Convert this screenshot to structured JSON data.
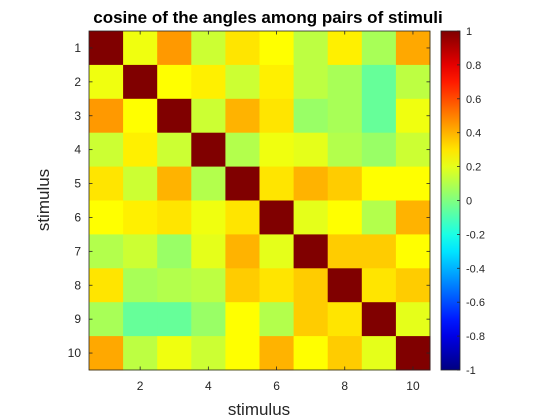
{
  "chart_data": {
    "type": "heatmap",
    "title": "cosine of the angles among pairs of stimuli",
    "xlabel": "stimulus",
    "ylabel": "stimulus",
    "x_ticks": [
      2,
      4,
      6,
      8,
      10
    ],
    "y_ticks": [
      1,
      2,
      3,
      4,
      5,
      6,
      7,
      8,
      9,
      10
    ],
    "x_tick_labels": [
      "2",
      "4",
      "6",
      "8",
      "10"
    ],
    "y_tick_labels": [
      "1",
      "2",
      "3",
      "4",
      "5",
      "6",
      "7",
      "8",
      "9",
      "10"
    ],
    "rows": [
      1,
      2,
      3,
      4,
      5,
      6,
      7,
      8,
      9,
      10
    ],
    "cols": [
      1,
      2,
      3,
      4,
      5,
      6,
      7,
      8,
      9,
      10
    ],
    "values": [
      [
        1.0,
        0.22,
        0.45,
        0.15,
        0.3,
        0.25,
        0.12,
        0.28,
        0.08,
        0.42
      ],
      [
        0.22,
        1.0,
        0.25,
        0.28,
        0.15,
        0.28,
        0.12,
        0.08,
        -0.05,
        0.12
      ],
      [
        0.45,
        0.25,
        1.0,
        0.15,
        0.4,
        0.3,
        0.05,
        0.08,
        -0.05,
        0.22
      ],
      [
        0.15,
        0.28,
        0.15,
        1.0,
        0.1,
        0.22,
        0.2,
        0.1,
        0.05,
        0.15
      ],
      [
        0.3,
        0.15,
        0.4,
        0.1,
        1.0,
        0.3,
        0.4,
        0.35,
        0.25,
        0.25
      ],
      [
        0.25,
        0.28,
        0.3,
        0.22,
        0.3,
        1.0,
        0.2,
        0.25,
        0.1,
        0.4
      ],
      [
        0.1,
        0.15,
        0.05,
        0.2,
        0.4,
        0.2,
        1.0,
        0.35,
        0.35,
        0.25
      ],
      [
        0.3,
        0.08,
        0.1,
        0.12,
        0.35,
        0.3,
        0.35,
        1.0,
        0.3,
        0.35
      ],
      [
        0.08,
        -0.05,
        -0.05,
        0.05,
        0.25,
        0.1,
        0.35,
        0.3,
        1.0,
        0.2
      ],
      [
        0.42,
        0.12,
        0.22,
        0.15,
        0.25,
        0.4,
        0.25,
        0.35,
        0.2,
        1.0
      ]
    ],
    "colormap": "jet",
    "clim": [
      -1,
      1
    ],
    "colorbar": {
      "ticks": [
        -1,
        -0.8,
        -0.6,
        -0.4,
        -0.2,
        0,
        0.2,
        0.4,
        0.6,
        0.8,
        1
      ],
      "tick_labels": [
        "-1",
        "-0.8",
        "-0.6",
        "-0.4",
        "-0.2",
        "0",
        "0.2",
        "0.4",
        "0.6",
        "0.8",
        "1"
      ],
      "placement": "right"
    },
    "grid": false
  }
}
